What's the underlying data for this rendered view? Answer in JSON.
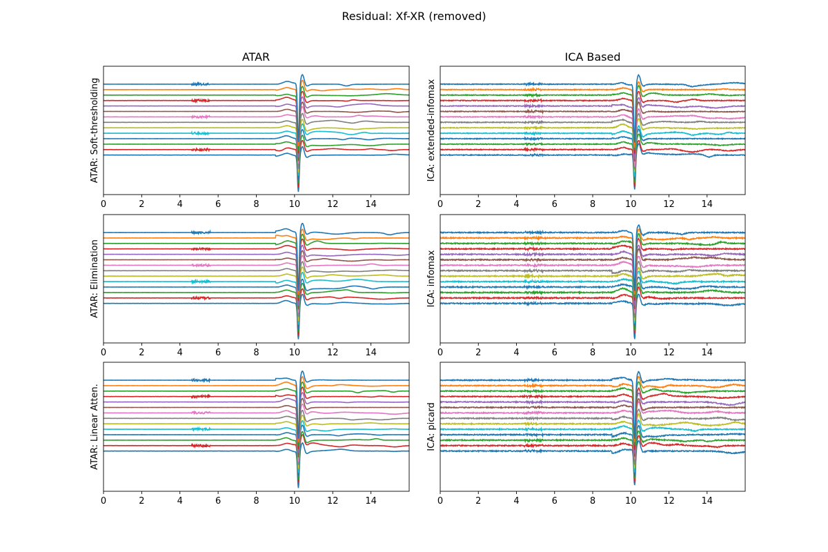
{
  "figure": {
    "title": "Residual: Xf-XR (removed)"
  },
  "columns": [
    "ATAR",
    "ICA Based"
  ],
  "series_colors": [
    "#1f77b4",
    "#ff7f0e",
    "#2ca02c",
    "#d62728",
    "#9467bd",
    "#8c564b",
    "#e377c2",
    "#7f7f7f",
    "#bcbd22",
    "#17becf",
    "#1f77b4",
    "#2ca02c",
    "#d62728"
  ],
  "chart_data": [
    {
      "type": "line",
      "column": "ATAR",
      "ylabel": "ATAR: Soft-thresholding",
      "xlim": [
        0,
        16
      ],
      "xticks": [
        0,
        2,
        4,
        6,
        8,
        10,
        12,
        14
      ],
      "n_channels": 14,
      "artifact_time": 10.2,
      "grid": false
    },
    {
      "type": "line",
      "column": "ICA Based",
      "ylabel": "ICA: extended-infomax",
      "xlim": [
        0,
        16
      ],
      "xticks": [
        0,
        2,
        4,
        6,
        8,
        10,
        12,
        14
      ],
      "n_channels": 14,
      "artifact_time": 10.2,
      "grid": false
    },
    {
      "type": "line",
      "column": "ATAR",
      "ylabel": "ATAR: Elimination",
      "xlim": [
        0,
        16
      ],
      "xticks": [
        0,
        2,
        4,
        6,
        8,
        10,
        12,
        14
      ],
      "n_channels": 14,
      "artifact_time": 10.2,
      "grid": false
    },
    {
      "type": "line",
      "column": "ICA Based",
      "ylabel": "ICA: infomax",
      "xlim": [
        0,
        16
      ],
      "xticks": [
        0,
        2,
        4,
        6,
        8,
        10,
        12,
        14
      ],
      "n_channels": 14,
      "artifact_time": 10.2,
      "grid": false
    },
    {
      "type": "line",
      "column": "ATAR",
      "ylabel": "ATAR: Linear Atten.",
      "xlim": [
        0,
        16
      ],
      "xticks": [
        0,
        2,
        4,
        6,
        8,
        10,
        12,
        14
      ],
      "n_channels": 14,
      "artifact_time": 10.2,
      "grid": false
    },
    {
      "type": "line",
      "column": "ICA Based",
      "ylabel": "ICA: picard",
      "xlim": [
        0,
        16
      ],
      "xticks": [
        0,
        2,
        4,
        6,
        8,
        10,
        12,
        14
      ],
      "n_channels": 14,
      "artifact_time": 10.2,
      "grid": false
    }
  ]
}
